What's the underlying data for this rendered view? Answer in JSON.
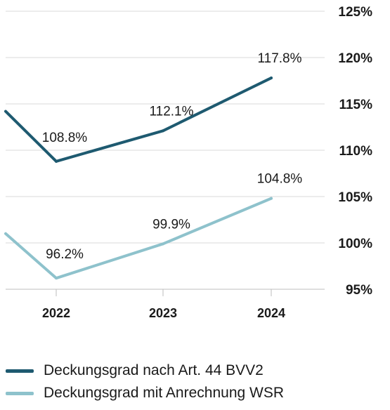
{
  "chart_data": {
    "type": "line",
    "categories": [
      "2022",
      "2023",
      "2024"
    ],
    "ylim": [
      95,
      125
    ],
    "y_ticks": [
      "125%",
      "120%",
      "115%",
      "110%",
      "105%",
      "100%",
      "95%"
    ],
    "grid": true,
    "legend_position": "bottom-left",
    "series": [
      {
        "name": "Deckungsgrad nach Art. 44 BVV2",
        "color": "#1e5a70",
        "values": [
          108.8,
          112.1,
          117.8
        ],
        "labels": [
          "108.8%",
          "112.1%",
          "117.8%"
        ],
        "start_value": 114.2
      },
      {
        "name": "Deckungsgrad mit Anrechnung WSR",
        "color": "#8ec2cc",
        "values": [
          96.2,
          99.9,
          104.8
        ],
        "labels": [
          "96.2%",
          "99.9%",
          "104.8%"
        ],
        "start_value": 101.0
      }
    ]
  }
}
